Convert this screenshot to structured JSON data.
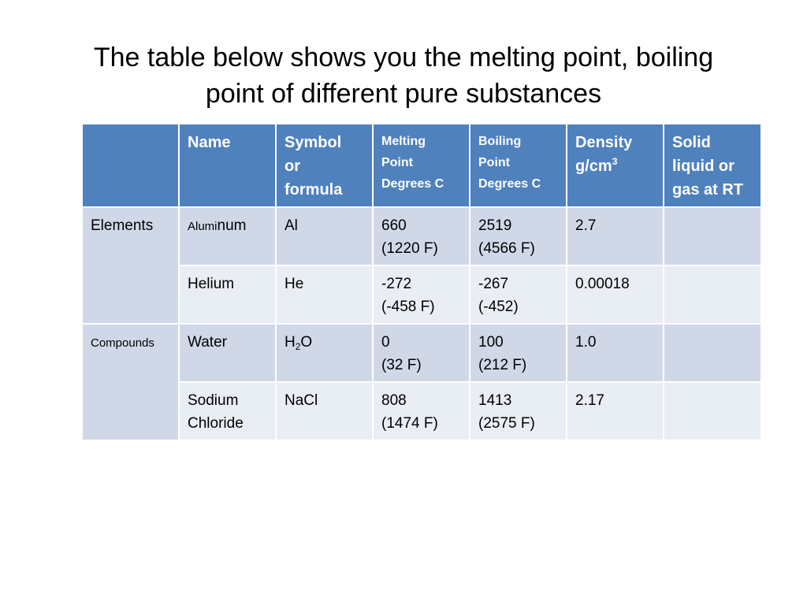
{
  "title": {
    "line1": "The table below shows you the melting point, boiling",
    "line2": "point of different pure substances"
  },
  "table": {
    "headers": {
      "group": "",
      "name": "Name",
      "symbol": [
        "Symbol",
        "or",
        "formula"
      ],
      "melting": [
        "Melting",
        "Point",
        "Degrees C"
      ],
      "boiling": [
        "Boiling",
        "Point",
        "Degrees C"
      ],
      "density_label": "Density",
      "density_unit": "g/cm",
      "density_exp": "3",
      "state": [
        "Solid",
        "liquid or",
        "gas at RT"
      ]
    },
    "groups": {
      "elements": "Elements",
      "compounds": "Compounds"
    },
    "rows": [
      {
        "name_small": "Alumi",
        "name_rest": "num",
        "symbol": "Al",
        "melting": [
          "660",
          "(1220 F)"
        ],
        "boiling": [
          "2519",
          "(4566 F)"
        ],
        "density": "2.7",
        "state": ""
      },
      {
        "name": "Helium",
        "symbol": "He",
        "melting": [
          "-272",
          "(-458 F)"
        ],
        "boiling": [
          "-267",
          "(-452)"
        ],
        "density": "0.00018",
        "state": ""
      },
      {
        "name": "Water",
        "symbol_base": "H",
        "symbol_sub": "2",
        "symbol_tail": "O",
        "melting": [
          "0",
          "(32 F)"
        ],
        "boiling": [
          "100",
          "(212 F)"
        ],
        "density": "1.0",
        "state": ""
      },
      {
        "name": [
          "Sodium",
          "Chloride"
        ],
        "symbol": "NaCl",
        "melting": [
          "808",
          "(1474 F)"
        ],
        "boiling": [
          "1413",
          "(2575 F)"
        ],
        "density": "2.17",
        "state": ""
      }
    ]
  }
}
